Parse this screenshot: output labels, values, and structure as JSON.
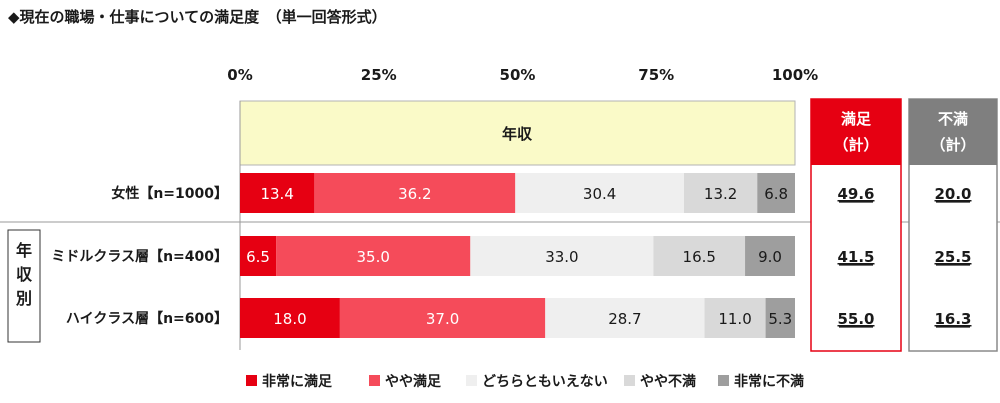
{
  "title": "◆現在の職場・仕事についての満足度　（単一回答形式）",
  "chart_data": {
    "type": "bar",
    "stacked": true,
    "orientation": "horizontal",
    "title": "◆現在の職場・仕事についての満足度　（単一回答形式）",
    "x_ticks": [
      "0%",
      "25%",
      "50%",
      "75%",
      "100%"
    ],
    "xlim": [
      0,
      100
    ],
    "header_band": "年収",
    "group_label": "年収別",
    "categories": [
      "女性【n=1000】",
      "ミドルクラス層【n=400】",
      "ハイクラス層【n=600】"
    ],
    "series": [
      {
        "name": "非常に満足",
        "color": "#e60012",
        "values": [
          13.4,
          6.5,
          18.0
        ]
      },
      {
        "name": "やや満足",
        "color": "#f54b5a",
        "values": [
          36.2,
          35.0,
          37.0
        ]
      },
      {
        "name": "どちらともいえない",
        "color": "#efefef",
        "values": [
          30.4,
          33.0,
          28.7
        ]
      },
      {
        "name": "やや不満",
        "color": "#d9d9d9",
        "values": [
          13.2,
          16.5,
          11.0
        ]
      },
      {
        "name": "非常に不満",
        "color": "#9e9e9e",
        "values": [
          6.8,
          9.0,
          5.3
        ]
      }
    ],
    "value_labels": [
      [
        "13.4",
        "36.2",
        "30.4",
        "13.2",
        "6.8"
      ],
      [
        "6.5",
        "35.0",
        "33.0",
        "16.5",
        "9.0"
      ],
      [
        "18.0",
        "37.0",
        "28.7",
        "11.0",
        "5.3"
      ]
    ],
    "summary": {
      "satisfied": {
        "header": [
          "満足",
          "（計）"
        ],
        "values": [
          "49.6",
          "41.5",
          "55.0"
        ],
        "color": "#e60012"
      },
      "dissatisfied": {
        "header": [
          "不満",
          "（計）"
        ],
        "values": [
          "20.0",
          "25.5",
          "16.3"
        ],
        "color": "#7f7f7f"
      }
    },
    "legend_position": "bottom"
  }
}
